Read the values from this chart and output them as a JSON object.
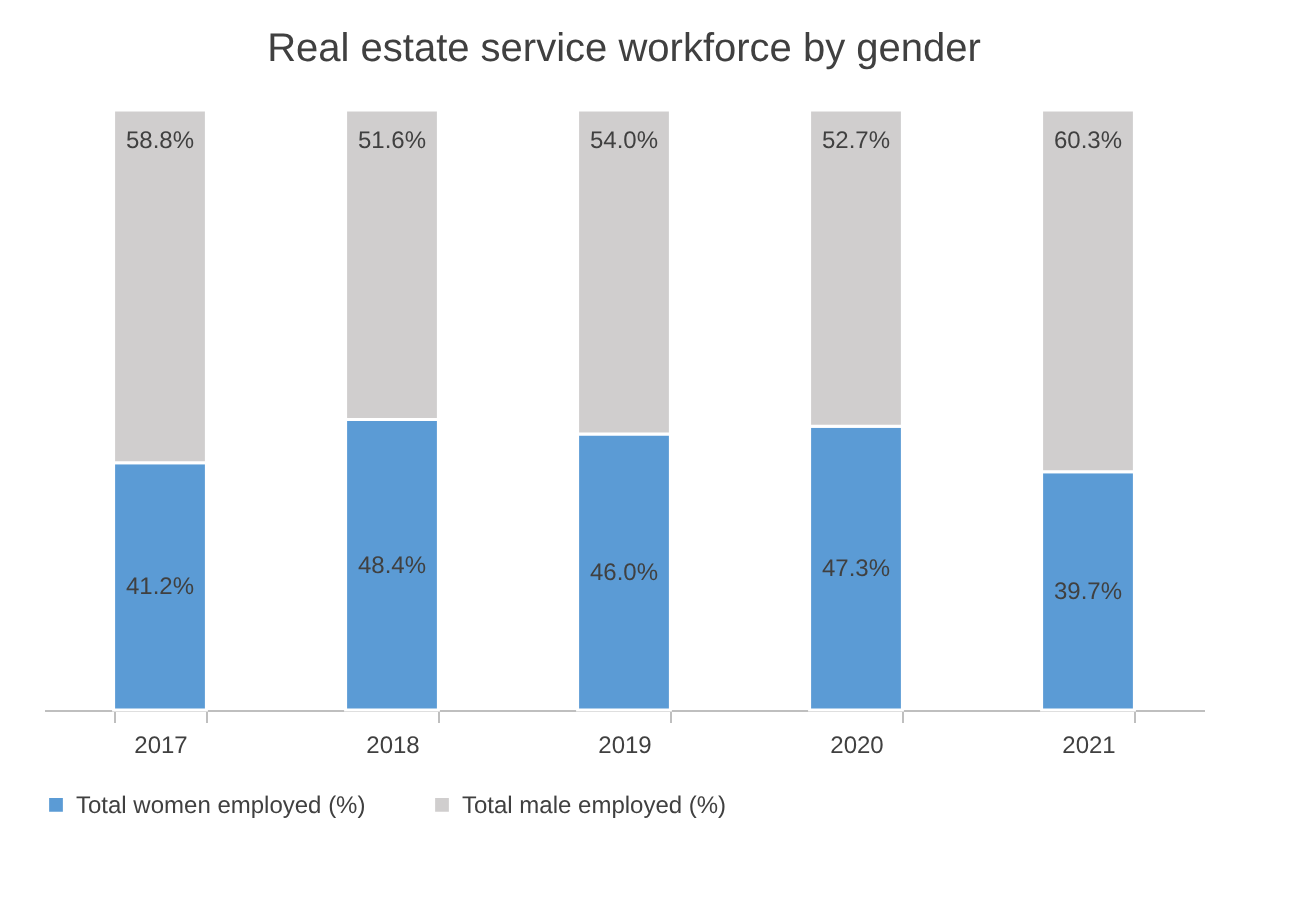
{
  "chart_data": {
    "type": "bar",
    "title": "Real estate service workforce by gender",
    "categories": [
      "2017",
      "2018",
      "2019",
      "2020",
      "2021"
    ],
    "stacked": true,
    "legend": "bottom",
    "grid": false,
    "series": [
      {
        "name": "Total women employed (%)",
        "color": "#5b9bd5",
        "values": [
          41.2,
          48.4,
          46.0,
          47.3,
          39.7
        ],
        "value_labels": [
          "41.2%",
          "48.4%",
          "46.0%",
          "47.3%",
          "39.7%"
        ]
      },
      {
        "name": "Total male employed (%)",
        "color": "#d0cece",
        "values": [
          58.8,
          51.6,
          54.0,
          52.7,
          60.3
        ],
        "value_labels": [
          "58.8%",
          "51.6%",
          "54.0%",
          "52.7%",
          "60.3%"
        ]
      }
    ]
  }
}
